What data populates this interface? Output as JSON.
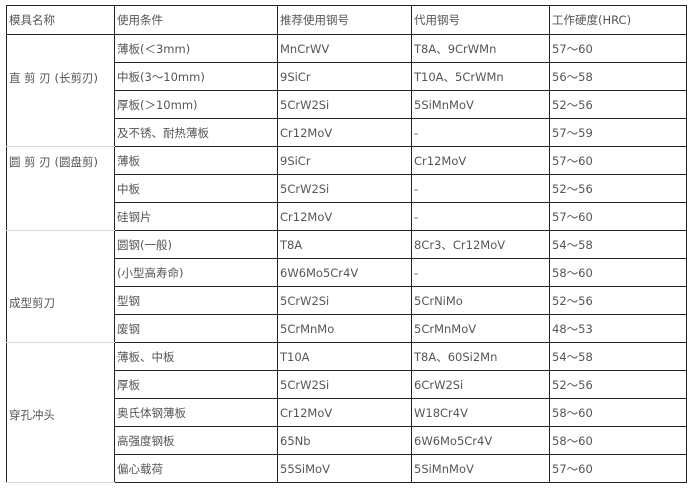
{
  "headers": [
    "模具名称",
    "使用条件",
    "推荐使用钢号",
    "代用钢号",
    "工作硬度(HRC)"
  ],
  "groups": [
    {
      "name": "直 剪 刃 (长剪刃)",
      "label_row": 1,
      "rows": [
        [
          "薄板(＜3mm)",
          "MnCrWV",
          "T8A、9CrWMn",
          "57～60"
        ],
        [
          "中板(3～10mm)",
          "9SiCr",
          "T10A、5CrWMn",
          "56～58"
        ],
        [
          "厚板(＞10mm)",
          "5CrW2Si",
          "5SiMnMoV",
          "52～56"
        ],
        [
          "及不锈、耐热薄板",
          "Cr12MoV",
          "-",
          "57～59"
        ]
      ]
    },
    {
      "name": "圆 剪 刃 (圆盘剪)",
      "label_row": 0,
      "rows": [
        [
          "薄板",
          "9SiCr",
          "Cr12MoV",
          "57～60"
        ],
        [
          "中板",
          "5CrW2Si",
          "-",
          "52～56"
        ],
        [
          "硅钢片",
          "Cr12MoV",
          "-",
          "57～60"
        ]
      ]
    },
    {
      "name": "成型剪刀",
      "label_row": 2,
      "rows": [
        [
          "圆钢(一般)",
          "T8A",
          "8Cr3、Cr12MoV",
          "54～58"
        ],
        [
          "(小型高寿命)",
          "6W6Mo5Cr4V",
          "-",
          "58～60"
        ],
        [
          "型钢",
          "5CrW2Si",
          "5CrNiMo",
          "52～56"
        ],
        [
          "废钢",
          "5CrMnMo",
          "5CrMnMoV",
          "48～53"
        ]
      ]
    },
    {
      "name": "穿孔冲头",
      "label_row": 2,
      "rows": [
        [
          "薄板、中板",
          "T10A",
          "T8A、60Si2Mn",
          "54～58"
        ],
        [
          "厚板",
          "5CrW2Si",
          "6CrW2Si",
          "52～56"
        ],
        [
          "奥氏体钢薄板",
          "Cr12MoV",
          "W18Cr4V",
          "58～60"
        ],
        [
          "高强度钢板",
          "65Nb",
          "6W6Mo5Cr4V",
          "58～60"
        ],
        [
          "偏心载荷",
          "55SiMoV",
          "5SiMnMoV",
          "57～60"
        ]
      ]
    }
  ]
}
